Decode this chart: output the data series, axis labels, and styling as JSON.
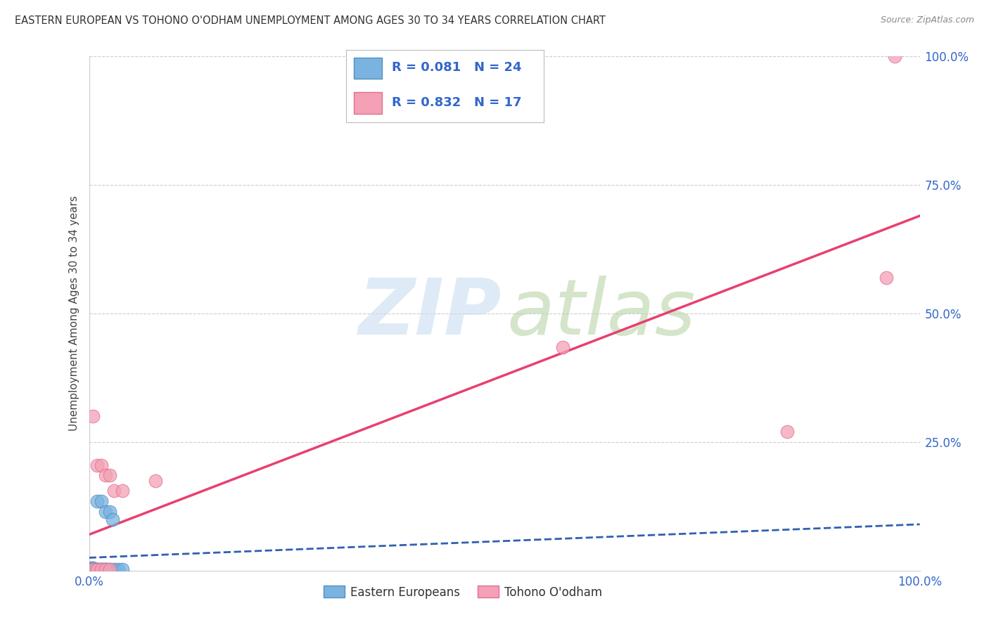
{
  "title": "EASTERN EUROPEAN VS TOHONO O'ODHAM UNEMPLOYMENT AMONG AGES 30 TO 34 YEARS CORRELATION CHART",
  "source": "Source: ZipAtlas.com",
  "ylabel": "Unemployment Among Ages 30 to 34 years",
  "xlim": [
    0.0,
    1.0
  ],
  "ylim": [
    0.0,
    1.0
  ],
  "watermark_zip": "ZIP",
  "watermark_atlas": "atlas",
  "legend_label1": "Eastern Europeans",
  "legend_label2": "Tohono O'odham",
  "R1": "0.081",
  "N1": "24",
  "R2": "0.832",
  "N2": "17",
  "blue_color": "#7ab3e0",
  "blue_edge_color": "#5090c0",
  "pink_color": "#f4a0b5",
  "pink_edge_color": "#e07090",
  "blue_line_color": "#3060b0",
  "pink_line_color": "#e84070",
  "blue_scatter": [
    [
      0.003,
      0.005
    ],
    [
      0.005,
      0.005
    ],
    [
      0.007,
      0.003
    ],
    [
      0.008,
      0.003
    ],
    [
      0.01,
      0.003
    ],
    [
      0.012,
      0.003
    ],
    [
      0.013,
      0.003
    ],
    [
      0.015,
      0.003
    ],
    [
      0.017,
      0.003
    ],
    [
      0.018,
      0.003
    ],
    [
      0.02,
      0.003
    ],
    [
      0.022,
      0.003
    ],
    [
      0.025,
      0.003
    ],
    [
      0.03,
      0.003
    ],
    [
      0.035,
      0.003
    ],
    [
      0.01,
      0.135
    ],
    [
      0.015,
      0.135
    ],
    [
      0.02,
      0.115
    ],
    [
      0.025,
      0.115
    ],
    [
      0.028,
      0.1
    ],
    [
      0.004,
      0.003
    ],
    [
      0.006,
      0.003
    ],
    [
      0.009,
      0.003
    ],
    [
      0.04,
      0.003
    ]
  ],
  "pink_scatter": [
    [
      0.005,
      0.3
    ],
    [
      0.01,
      0.205
    ],
    [
      0.015,
      0.205
    ],
    [
      0.02,
      0.185
    ],
    [
      0.025,
      0.185
    ],
    [
      0.03,
      0.155
    ],
    [
      0.04,
      0.155
    ],
    [
      0.08,
      0.175
    ],
    [
      0.57,
      0.435
    ],
    [
      0.84,
      0.27
    ],
    [
      0.96,
      0.57
    ],
    [
      0.005,
      0.003
    ],
    [
      0.01,
      0.003
    ],
    [
      0.015,
      0.003
    ],
    [
      0.02,
      0.003
    ],
    [
      0.025,
      0.003
    ],
    [
      0.97,
      1.0
    ]
  ],
  "blue_line_slope": 0.065,
  "blue_line_intercept": 0.025,
  "pink_line_slope": 0.62,
  "pink_line_intercept": 0.07,
  "background_color": "#ffffff",
  "grid_color": "#cccccc",
  "tick_color": "#3366cc",
  "ytick_positions": [
    0.25,
    0.5,
    0.75,
    1.0
  ],
  "ytick_labels": [
    "25.0%",
    "50.0%",
    "75.0%",
    "100.0%"
  ],
  "xtick_positions": [
    0.0,
    1.0
  ],
  "xtick_labels": [
    "0.0%",
    "100.0%"
  ]
}
